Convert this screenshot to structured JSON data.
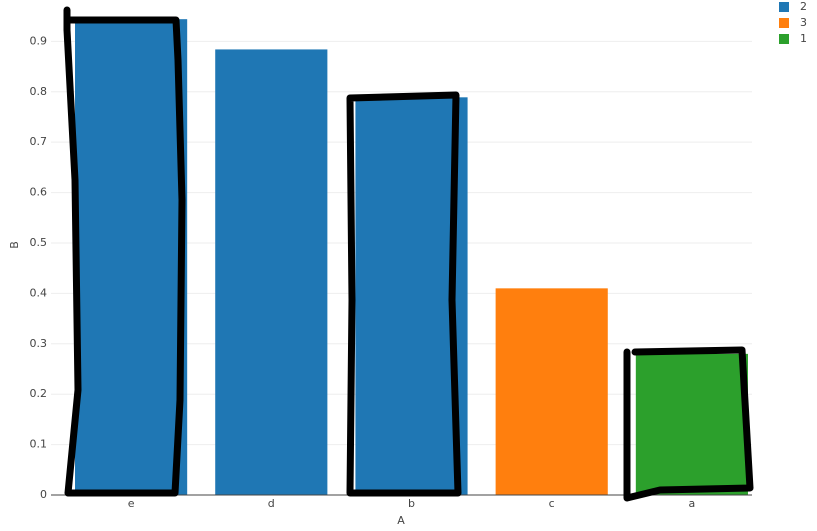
{
  "chart_data": {
    "type": "bar",
    "x_label": "A",
    "y_label": "B",
    "categories": [
      "e",
      "d",
      "b",
      "c",
      "a"
    ],
    "series": [
      {
        "name": "2",
        "color": "#1f77b4",
        "values": [
          0.944,
          0.884,
          0.789,
          null,
          null
        ]
      },
      {
        "name": "3",
        "color": "#ff7f0e",
        "values": [
          null,
          null,
          null,
          0.41,
          null
        ]
      },
      {
        "name": "1",
        "color": "#2ca02c",
        "values": [
          null,
          null,
          null,
          null,
          0.28
        ]
      }
    ],
    "ylim": [
      0,
      0.99
    ],
    "yticks": [
      0,
      0.1,
      0.2,
      0.3,
      0.4,
      0.5,
      0.6,
      0.7,
      0.8,
      0.9
    ],
    "grid": true
  }
}
